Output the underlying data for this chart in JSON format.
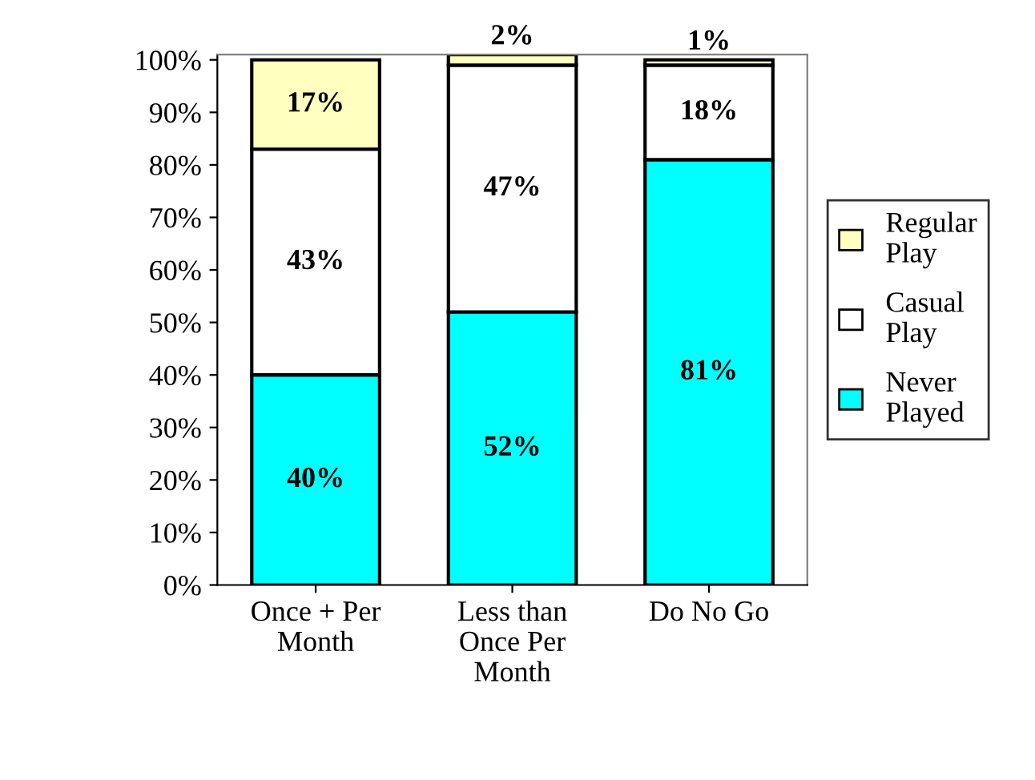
{
  "chart_data": {
    "type": "bar",
    "stacked": true,
    "legend": "right",
    "grid": false,
    "categories": [
      "Once + Per\nMonth",
      "Less than\nOnce Per\nMonth",
      "Do No Go"
    ],
    "ylim": [
      0,
      101
    ],
    "yticks": [
      {
        "value": 0,
        "label": "0%"
      },
      {
        "value": 10,
        "label": "10%"
      },
      {
        "value": 20,
        "label": "20%"
      },
      {
        "value": 30,
        "label": "30%"
      },
      {
        "value": 40,
        "label": "40%"
      },
      {
        "value": 50,
        "label": "50%"
      },
      {
        "value": 60,
        "label": "60%"
      },
      {
        "value": 70,
        "label": "70%"
      },
      {
        "value": 80,
        "label": "80%"
      },
      {
        "value": 90,
        "label": "90%"
      },
      {
        "value": 100,
        "label": "100%"
      }
    ],
    "series": [
      {
        "name": "Never\nPlayed",
        "color": "#00ffff",
        "values": [
          40,
          52,
          81
        ],
        "value_labels": [
          "40%",
          "52%",
          "81%"
        ]
      },
      {
        "name": "Casual\nPlay",
        "color": "#ffffff",
        "values": [
          43,
          47,
          18
        ],
        "value_labels": [
          "43%",
          "47%",
          "18%"
        ]
      },
      {
        "name": "Regular\nPlay",
        "color": "#ffffc0",
        "values": [
          17,
          2,
          1
        ],
        "value_labels": [
          "17%",
          "2%",
          "1%"
        ]
      }
    ]
  }
}
